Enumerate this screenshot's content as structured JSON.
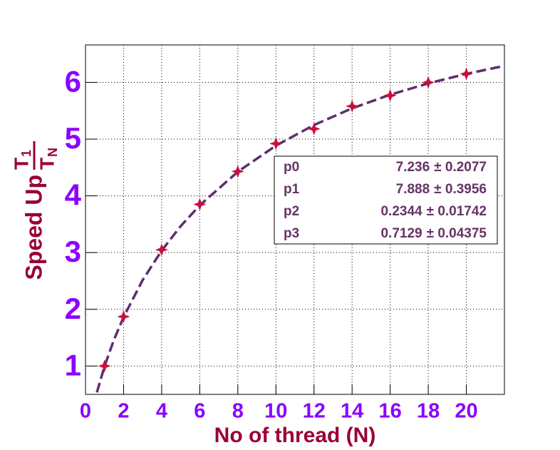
{
  "chart_data": {
    "type": "scatter",
    "xlabel": "No of thread (N)",
    "ylabel": "Speed Up",
    "ylabel_fraction": {
      "numerator": "T",
      "numerator_sub": "1",
      "denominator": "T",
      "denominator_sub": "N"
    },
    "xlim": [
      0,
      22
    ],
    "ylim": [
      0.5,
      6.66
    ],
    "xticks": [
      0,
      2,
      4,
      6,
      8,
      10,
      12,
      14,
      16,
      18,
      20
    ],
    "yticks": [
      1,
      2,
      3,
      4,
      5,
      6
    ],
    "grid": true,
    "series": [
      {
        "style": "markers",
        "color": "#c8103e",
        "x": [
          1,
          2,
          4,
          6,
          8,
          10,
          12,
          14,
          16,
          18,
          20
        ],
        "values": [
          1.0,
          1.87,
          3.05,
          3.85,
          4.43,
          4.92,
          5.18,
          5.58,
          5.77,
          6.0,
          6.15
        ]
      },
      {
        "style": "dashed-line",
        "color": "#5e2f6e",
        "x": [
          0.6,
          1,
          1.5,
          2,
          3,
          4,
          5,
          6,
          8,
          10,
          12,
          14,
          16,
          18,
          20,
          22
        ],
        "values": [
          0.534,
          0.996,
          1.468,
          1.864,
          2.514,
          3.034,
          3.466,
          3.833,
          4.425,
          4.885,
          5.248,
          5.542,
          5.783,
          5.983,
          6.15,
          6.292
        ]
      }
    ],
    "stats_box": [
      {
        "name": "p0",
        "value": "7.236",
        "error": "± 0.2077"
      },
      {
        "name": "p1",
        "value": "7.888",
        "error": "± 0.3956"
      },
      {
        "name": "p2",
        "value": "0.2344",
        "error": "± 0.01742"
      },
      {
        "name": "p3",
        "value": "0.7129",
        "error": "± 0.04375"
      }
    ]
  }
}
